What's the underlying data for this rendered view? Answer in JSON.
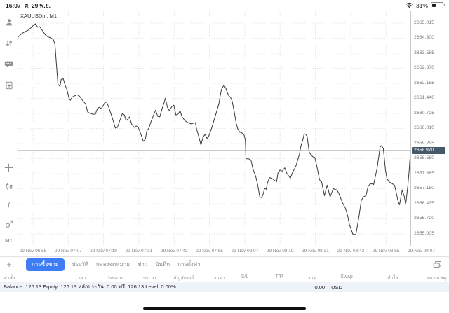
{
  "status_bar": {
    "time": "16:07",
    "date": "ศ. 29 พ.ย.",
    "battery_percent": "31%"
  },
  "sidebar": {
    "items": [
      {
        "name": "account"
      },
      {
        "name": "trades"
      },
      {
        "name": "chat"
      },
      {
        "name": "new-order"
      },
      {
        "name": "crosshair"
      },
      {
        "name": "chart-style"
      },
      {
        "name": "indicators"
      },
      {
        "name": "objects"
      }
    ],
    "timeframe_label": "M1"
  },
  "chart": {
    "symbol_label": "XAUUSDm, M1"
  },
  "chart_data": {
    "type": "line",
    "title": "XAUUSDm, M1",
    "symbol": "XAUUSDm",
    "timeframe": "M1",
    "bid": 2658.97,
    "bid_label": "2658.970",
    "visible_time_range": [
      "29 Nov 06:50",
      "29 Nov 09:03"
    ],
    "y_axis": {
      "top_price": 2665.58,
      "bottom_price": 2654.44,
      "labels": [
        "2665.015",
        "2664.300",
        "2663.585",
        "2662.870",
        "2662.155",
        "2661.440",
        "2660.725",
        "2660.010",
        "2659.295",
        "2658.580",
        "2657.865",
        "2657.150",
        "2656.435",
        "2655.720",
        "2655.005"
      ]
    },
    "x_axis": {
      "note": "t = minutes since 06:50",
      "t_max": 133.3,
      "t_first": 5,
      "t_step": 12,
      "labels": [
        "29 Nov 06:55",
        "29 Nov 07:07",
        "29 Nov 07:19",
        "29 Nov 07:31",
        "29 Nov 07:43",
        "29 Nov 07:55",
        "29 Nov 08:07",
        "29 Nov 08:19",
        "29 Nov 08:31",
        "29 Nov 08:43",
        "29 Nov 08:55",
        "29 Nov 09:07"
      ]
    },
    "points": [
      [
        0,
        2664.36
      ],
      [
        1.2,
        2664.52
      ],
      [
        2.4,
        2664.62
      ],
      [
        3.5,
        2664.69
      ],
      [
        4.5,
        2664.82
      ],
      [
        5.2,
        2664.92
      ],
      [
        5.9,
        2664.98
      ],
      [
        6.6,
        2664.82
      ],
      [
        7.3,
        2664.85
      ],
      [
        8.3,
        2664.65
      ],
      [
        9.2,
        2664.46
      ],
      [
        10.1,
        2664.36
      ],
      [
        11.1,
        2664.32
      ],
      [
        12,
        2664.22
      ],
      [
        12.5,
        2663.99
      ],
      [
        13,
        2663.03
      ],
      [
        13.5,
        2662.11
      ],
      [
        14.2,
        2662.01
      ],
      [
        14.6,
        2662.34
      ],
      [
        15.3,
        2662.37
      ],
      [
        16,
        2662.04
      ],
      [
        16.5,
        2661.88
      ],
      [
        17.2,
        2661.48
      ],
      [
        17.7,
        2661.35
      ],
      [
        18.4,
        2661.51
      ],
      [
        19.4,
        2661.58
      ],
      [
        20.1,
        2661.61
      ],
      [
        20.8,
        2661.55
      ],
      [
        21.5,
        2661.41
      ],
      [
        22.2,
        2661.28
      ],
      [
        22.9,
        2661.18
      ],
      [
        23.6,
        2660.79
      ],
      [
        24.5,
        2660.72
      ],
      [
        25.5,
        2660.69
      ],
      [
        26.2,
        2660.69
      ],
      [
        26.9,
        2660.95
      ],
      [
        27.6,
        2661.02
      ],
      [
        28.3,
        2660.95
      ],
      [
        29.3,
        2661.21
      ],
      [
        30,
        2661.28
      ],
      [
        30.7,
        2661.05
      ],
      [
        31.4,
        2660.75
      ],
      [
        32.1,
        2660.46
      ],
      [
        33,
        2660.03
      ],
      [
        33.7,
        2660.06
      ],
      [
        34.7,
        2660.46
      ],
      [
        35.4,
        2660.72
      ],
      [
        36.1,
        2660.65
      ],
      [
        36.6,
        2660.39
      ],
      [
        37.3,
        2660.46
      ],
      [
        37.8,
        2660.56
      ],
      [
        38.5,
        2660.23
      ],
      [
        39.4,
        2660.06
      ],
      [
        40.1,
        2660.13
      ],
      [
        40.8,
        2660.06
      ],
      [
        41.8,
        2659.7
      ],
      [
        42.5,
        2659.4
      ],
      [
        43.2,
        2659.5
      ],
      [
        43.7,
        2659.9
      ],
      [
        44.4,
        2660.03
      ],
      [
        45.1,
        2660.32
      ],
      [
        46,
        2660.65
      ],
      [
        46.7,
        2660.88
      ],
      [
        47.4,
        2660.59
      ],
      [
        48.1,
        2660.56
      ],
      [
        48.9,
        2660.95
      ],
      [
        49.6,
        2661.25
      ],
      [
        50,
        2661.45
      ],
      [
        50.7,
        2661.02
      ],
      [
        51.4,
        2660.85
      ],
      [
        52.2,
        2661.05
      ],
      [
        52.9,
        2661.12
      ],
      [
        53.6,
        2660.65
      ],
      [
        54.3,
        2660.69
      ],
      [
        55,
        2660.85
      ],
      [
        55.7,
        2660.56
      ],
      [
        56.6,
        2660.39
      ],
      [
        57.3,
        2660.32
      ],
      [
        58.1,
        2660.26
      ],
      [
        58.8,
        2660.23
      ],
      [
        59.5,
        2660.26
      ],
      [
        60.2,
        2660.29
      ],
      [
        60.6,
        2660.0
      ],
      [
        61.4,
        2659.6
      ],
      [
        62.1,
        2659.23
      ],
      [
        62.8,
        2659.6
      ],
      [
        63.5,
        2659.73
      ],
      [
        64.2,
        2659.53
      ],
      [
        64.7,
        2659.63
      ],
      [
        65.4,
        2659.9
      ],
      [
        66.1,
        2660.19
      ],
      [
        66.8,
        2660.52
      ],
      [
        67.5,
        2660.85
      ],
      [
        68.2,
        2661.18
      ],
      [
        68.7,
        2661.61
      ],
      [
        69.1,
        2661.88
      ],
      [
        69.9,
        2662.07
      ],
      [
        70.6,
        2661.91
      ],
      [
        71,
        2661.74
      ],
      [
        71.5,
        2661.58
      ],
      [
        72.2,
        2661.48
      ],
      [
        72.7,
        2661.31
      ],
      [
        73.4,
        2660.82
      ],
      [
        74.1,
        2660.26
      ],
      [
        74.6,
        2660.0
      ],
      [
        75.3,
        2659.83
      ],
      [
        76,
        2659.8
      ],
      [
        76.7,
        2659.73
      ],
      [
        77.2,
        2659.47
      ],
      [
        77.4,
        2658.57
      ],
      [
        78.3,
        2658.57
      ],
      [
        79.1,
        2658.51
      ],
      [
        79.8,
        2658.08
      ],
      [
        80.7,
        2657.75
      ],
      [
        81.4,
        2657.32
      ],
      [
        82.1,
        2656.76
      ],
      [
        82.8,
        2656.72
      ],
      [
        83.3,
        2656.92
      ],
      [
        83.8,
        2657.19
      ],
      [
        84.3,
        2657.12
      ],
      [
        84.7,
        2657.42
      ],
      [
        85.4,
        2657.68
      ],
      [
        86.1,
        2657.65
      ],
      [
        86.8,
        2657.58
      ],
      [
        87.8,
        2657.48
      ],
      [
        88.3,
        2657.91
      ],
      [
        89,
        2658.04
      ],
      [
        89.7,
        2657.98
      ],
      [
        90.6,
        2658.14
      ],
      [
        91.3,
        2657.88
      ],
      [
        92,
        2657.75
      ],
      [
        92.5,
        2657.65
      ],
      [
        93.2,
        2657.91
      ],
      [
        93.7,
        2658.04
      ],
      [
        94.4,
        2658.24
      ],
      [
        94.9,
        2658.47
      ],
      [
        95.6,
        2658.8
      ],
      [
        96,
        2659.13
      ],
      [
        96.8,
        2659.5
      ],
      [
        97.2,
        2659.76
      ],
      [
        97.7,
        2659.73
      ],
      [
        98.2,
        2659.63
      ],
      [
        98.9,
        2658.9
      ],
      [
        99.3,
        2658.8
      ],
      [
        100.1,
        2658.67
      ],
      [
        100.8,
        2658.64
      ],
      [
        101.7,
        2658.08
      ],
      [
        102.4,
        2657.58
      ],
      [
        103.1,
        2657.48
      ],
      [
        104.1,
        2656.82
      ],
      [
        105,
        2657.32
      ],
      [
        106,
        2656.76
      ],
      [
        107.1,
        2657.15
      ],
      [
        108.3,
        2657.09
      ],
      [
        109,
        2656.92
      ],
      [
        110.2,
        2656.49
      ],
      [
        111.2,
        2656.23
      ],
      [
        111.9,
        2655.9
      ],
      [
        112.6,
        2655.43
      ],
      [
        113.3,
        2655.17
      ],
      [
        113.7,
        2655.0
      ],
      [
        114.7,
        2654.97
      ],
      [
        114.9,
        2655.07
      ],
      [
        115.9,
        2655.9
      ],
      [
        116.6,
        2656.59
      ],
      [
        117.3,
        2656.76
      ],
      [
        118.2,
        2656.82
      ],
      [
        118.9,
        2657.25
      ],
      [
        119.6,
        2657.38
      ],
      [
        120.4,
        2657.38
      ],
      [
        120.8,
        2657.35
      ],
      [
        122,
        2658.14
      ],
      [
        123,
        2659.13
      ],
      [
        123.4,
        2659.2
      ],
      [
        124.1,
        2659.07
      ],
      [
        124.8,
        2658.04
      ],
      [
        125.3,
        2657.65
      ],
      [
        126,
        2657.48
      ],
      [
        127.2,
        2657.38
      ],
      [
        127.9,
        2657.32
      ],
      [
        129.1,
        2656.56
      ],
      [
        129.6,
        2656.39
      ],
      [
        130.5,
        2657.09
      ],
      [
        131.2,
        2656.79
      ],
      [
        131.7,
        2656.39
      ],
      [
        132.4,
        2657.25
      ],
      [
        132.9,
        2658.04
      ],
      [
        133.3,
        2658.86
      ]
    ]
  },
  "tabs": {
    "items": [
      {
        "label": "การซื้อขาย",
        "selected": true
      },
      {
        "label": "ประวัติ",
        "selected": false
      },
      {
        "label": "กล่องจดหมาย",
        "selected": false
      },
      {
        "label": "ข่าว",
        "selected": false
      },
      {
        "label": "บันทึก",
        "selected": false
      },
      {
        "label": "การตั้งค่า",
        "selected": false
      }
    ]
  },
  "table": {
    "headers": [
      "คำสั่ง",
      "เวลา",
      "ประเภท",
      "ขนาด",
      "สัญลักษณ์",
      "ราคา",
      "S/L",
      "T/P",
      "ราคา",
      "Swap",
      "กำไร",
      "หมายเหตุ"
    ]
  },
  "account": {
    "summary": "Balance: 126.13 Equity: 126.13 หลักประกัน: 0.00 ฟรี: 126.13 Level: 0.00%",
    "profit": "0.00",
    "currency": "USD"
  }
}
